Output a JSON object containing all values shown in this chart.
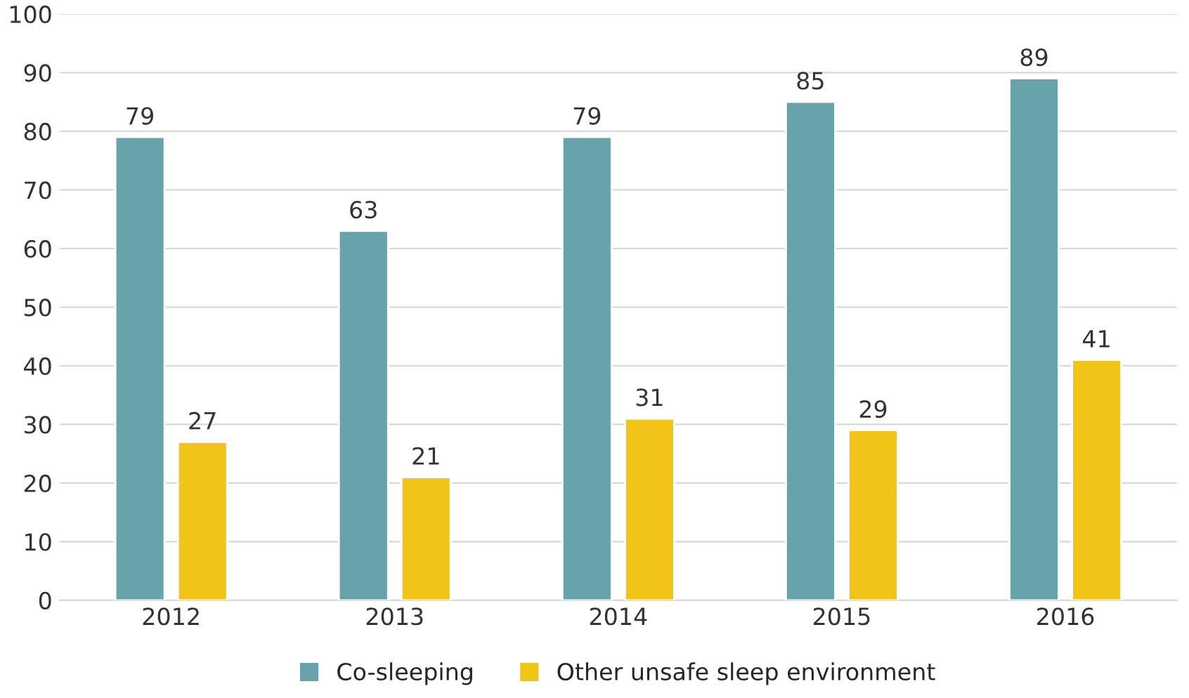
{
  "chart_data": {
    "type": "bar",
    "categories": [
      "2012",
      "2013",
      "2014",
      "2015",
      "2016"
    ],
    "series": [
      {
        "name": "Co-sleeping",
        "color": "#68a2aa",
        "values": [
          79,
          63,
          79,
          85,
          89
        ]
      },
      {
        "name": "Other unsafe sleep environment",
        "color": "#f2c418",
        "values": [
          27,
          21,
          31,
          29,
          41
        ]
      }
    ],
    "ylim": [
      0,
      100
    ],
    "yticks": [
      0,
      10,
      20,
      30,
      40,
      50,
      60,
      70,
      80,
      90,
      100
    ],
    "grid": "y",
    "legend": "bottom",
    "data_labels": true
  }
}
